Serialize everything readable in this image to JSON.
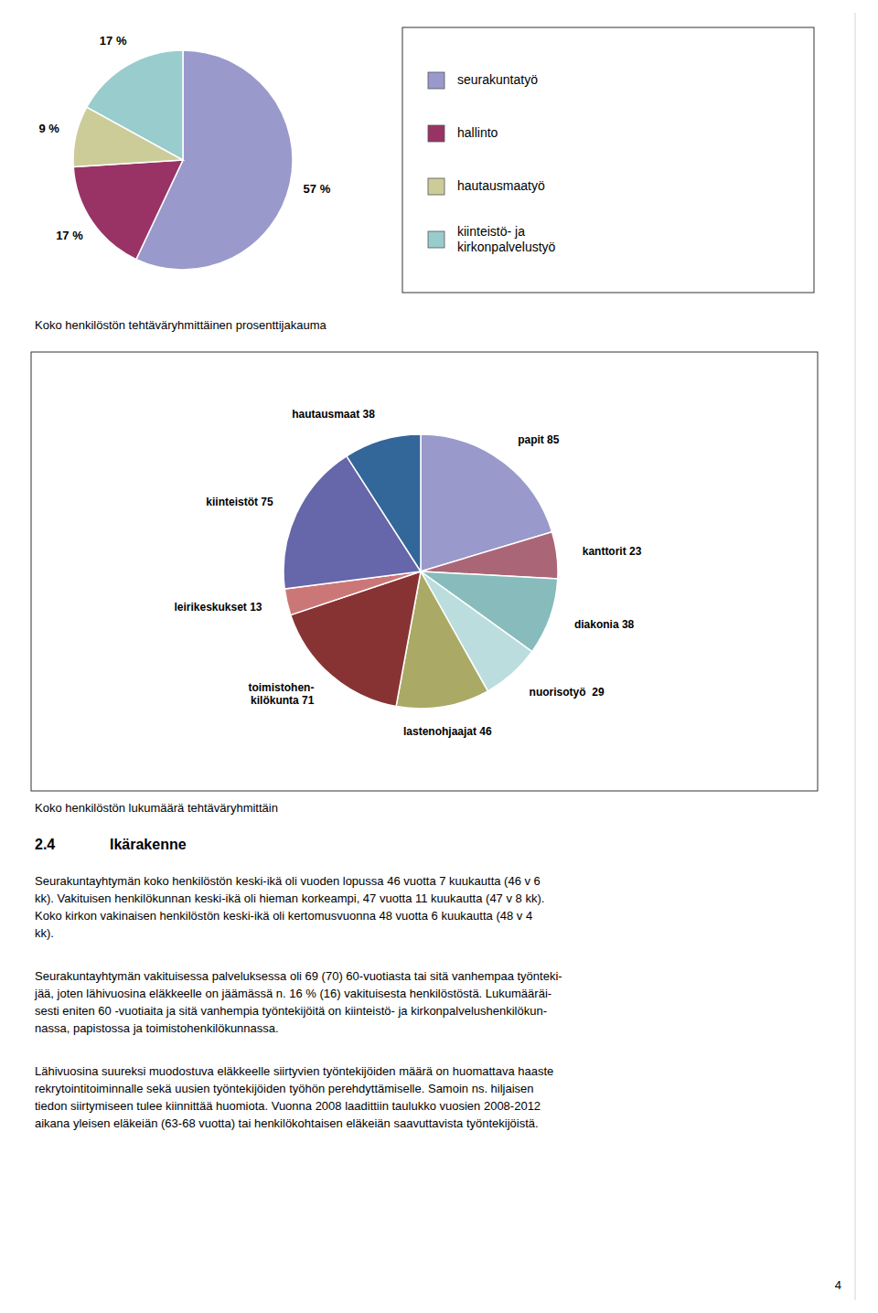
{
  "chart_data": [
    {
      "type": "pie",
      "title": "Koko henkilöstön tehtäväryhmittäinen prosenttijakauma",
      "categories": [
        "seurakuntatyö",
        "hallinto",
        "hautausmaatyö",
        "kiinteistö- ja\nkirkonpalvelustyö"
      ],
      "values": [
        57,
        17,
        9,
        17
      ],
      "value_labels": [
        "57 %",
        "17 %",
        "9 %",
        "17 %"
      ],
      "colors": [
        "#9999CC",
        "#993366",
        "#CCCC99",
        "#99CCCC"
      ],
      "data_labels": true,
      "legend": "right"
    },
    {
      "type": "pie",
      "title": "Koko henkilöstön lukumäärä tehtäväryhmittäin",
      "values": [
        85,
        23,
        38,
        29,
        46,
        71,
        13,
        75,
        38
      ],
      "value_labels": [
        "papit 85",
        "kanttorit 23",
        "diakonia 38",
        "nuorisotyö  29",
        "lastenohjaajat 46",
        "toimistohen-\nkilökunta 71",
        "leirikeskukset 13",
        "kiinteistöt 75",
        "hautausmaat 38"
      ],
      "colors": [
        "#9999CC",
        "#AA6677",
        "#88BBBB",
        "#BBDDDD",
        "#AAAA66",
        "#883333",
        "#CC7777",
        "#6666AA",
        "#336699"
      ],
      "data_labels": true
    }
  ],
  "section_number": "2.4",
  "section_title": "Ikärakenne",
  "paragraphs": [
    "Seurakuntayhtymän koko henkilöstön keski-ikä oli vuoden lopussa 46 vuotta 7 kuukautta (46 v 6\nkk). Vakituisen henkilökunnan keski-ikä oli hieman korkeampi, 47 vuotta 11 kuukautta (47 v 8 kk).\nKoko kirkon vakinaisen henkilöstön keski-ikä oli kertomusvuonna 48 vuotta 6 kuukautta (48 v 4\nkk).",
    "Seurakuntayhtymän vakituisessa palveluksessa oli 69 (70) 60-vuotiasta tai sitä vanhempaa työnteki-\njää, joten lähivuosina eläkkeelle on jäämässä n. 16 % (16) vakituisesta henkilöstöstä. Lukumääräi-\nsesti eniten 60 -vuotiaita ja sitä vanhempia työntekijöitä on kiinteistö- ja kirkonpalvelushenkilökun-\nnassa, papistossa ja toimistohenkilökunnassa.",
    "Lähivuosina suureksi muodostuva eläkkeelle siirtyvien työntekijöiden määrä on huomattava haaste\nrekrytointitoiminnalle sekä uusien työntekijöiden työhön perehdyttämiselle. Samoin ns. hiljaisen\ntiedon siirtymiseen tulee kiinnittää huomiota. Vuonna 2008 laadittiin taulukko vuosien 2008-2012\naikana yleisen eläkeiän (63-68 vuotta) tai henkilökohtaisen eläkeiän saavuttavista työntekijöistä."
  ],
  "page_number": "4"
}
